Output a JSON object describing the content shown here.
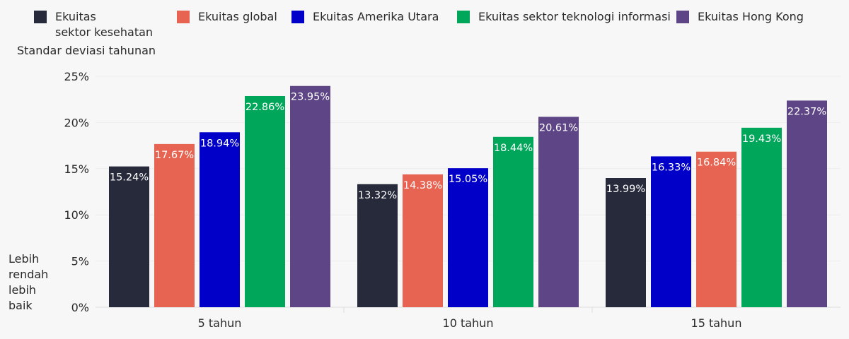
{
  "chart_data": {
    "type": "bar",
    "ylabel": "Standar deviasi tahunan",
    "categories": [
      "5 tahun",
      "10 tahun",
      "15 tahun"
    ],
    "ylim": [
      0,
      25
    ],
    "yticks": [
      "0%",
      "5%",
      "10%",
      "15%",
      "20%",
      "25%"
    ],
    "grid": true,
    "legend_position": "top",
    "note": "Lebih\nrendah\nlebih\nbaik",
    "legend": [
      {
        "name": "Ekuitas\nsektor kesehatan",
        "color": "#262a3b"
      },
      {
        "name": "Ekuitas global",
        "color": "#e86452"
      },
      {
        "name": "Ekuitas Amerika Utara",
        "color": "#0000c8"
      },
      {
        "name": "Ekuitas sektor teknologi informasi",
        "color": "#00a65a"
      },
      {
        "name": "Ekuitas Hong Kong",
        "color": "#5e4585"
      }
    ],
    "groups": [
      {
        "category": "5 tahun",
        "bars": [
          {
            "series": "Ekuitas\nsektor kesehatan",
            "value": 15.24,
            "label": "15.24%",
            "color": "#262a3b"
          },
          {
            "series": "Ekuitas global",
            "value": 17.67,
            "label": "17.67%",
            "color": "#e86452"
          },
          {
            "series": "Ekuitas Amerika Utara",
            "value": 18.94,
            "label": "18.94%",
            "color": "#0000c8"
          },
          {
            "series": "Ekuitas sektor teknologi informasi",
            "value": 22.86,
            "label": "22.86%",
            "color": "#00a65a"
          },
          {
            "series": "Ekuitas Hong Kong",
            "value": 23.95,
            "label": "23.95%",
            "color": "#5e4585"
          }
        ]
      },
      {
        "category": "10 tahun",
        "bars": [
          {
            "series": "Ekuitas\nsektor kesehatan",
            "value": 13.32,
            "label": "13.32%",
            "color": "#262a3b"
          },
          {
            "series": "Ekuitas global",
            "value": 14.38,
            "label": "14.38%",
            "color": "#e86452"
          },
          {
            "series": "Ekuitas Amerika Utara",
            "value": 15.05,
            "label": "15.05%",
            "color": "#0000c8"
          },
          {
            "series": "Ekuitas sektor teknologi informasi",
            "value": 18.44,
            "label": "18.44%",
            "color": "#00a65a"
          },
          {
            "series": "Ekuitas Hong Kong",
            "value": 20.61,
            "label": "20.61%",
            "color": "#5e4585"
          }
        ]
      },
      {
        "category": "15 tahun",
        "bars": [
          {
            "series": "Ekuitas\nsektor kesehatan",
            "value": 13.99,
            "label": "13.99%",
            "color": "#262a3b"
          },
          {
            "series": "Ekuitas Amerika Utara",
            "value": 16.33,
            "label": "16.33%",
            "color": "#0000c8"
          },
          {
            "series": "Ekuitas global",
            "value": 16.84,
            "label": "16.84%",
            "color": "#e86452"
          },
          {
            "series": "Ekuitas sektor teknologi informasi",
            "value": 19.43,
            "label": "19.43%",
            "color": "#00a65a"
          },
          {
            "series": "Ekuitas Hong Kong",
            "value": 22.37,
            "label": "22.37%",
            "color": "#5e4585"
          }
        ]
      }
    ]
  }
}
